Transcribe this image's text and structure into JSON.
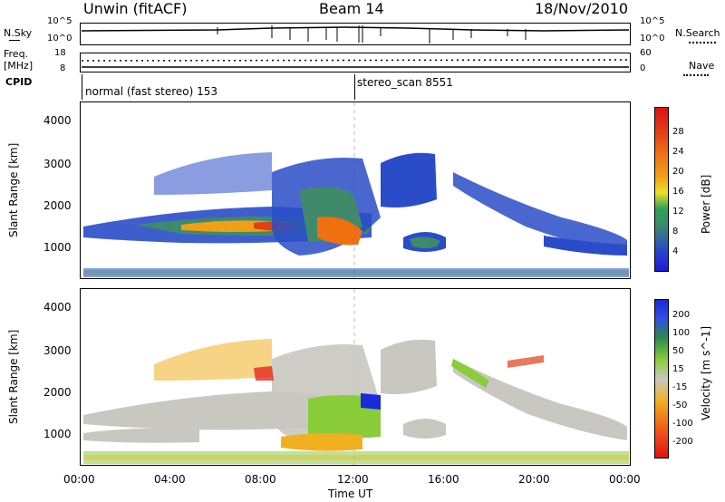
{
  "header": {
    "station": "Unwin (fitACF)",
    "beam": "Beam 14",
    "date": "18/Nov/2010"
  },
  "top_panels": {
    "nsky_label": "N.Sky",
    "nsky_ticks": [
      "10^5",
      "10^0"
    ],
    "nsearch_label": "N.Search",
    "nsearch_ticks": [
      "10^5",
      "10^0"
    ],
    "freq_label_1": "Freq.",
    "freq_label_2": "[MHz]",
    "freq_ticks": [
      "18",
      "8"
    ],
    "nave_label": "Nave",
    "nave_ticks": [
      "60",
      "0"
    ],
    "cpid_label": "CPID",
    "cpid_segments": [
      {
        "name": "normal (fast stereo)",
        "id": "153"
      },
      {
        "name": "stereo_scan",
        "id": "8551"
      }
    ]
  },
  "colors": {
    "power_scale": [
      "#1a1ad8",
      "#2a4cc8",
      "#3f8a6a",
      "#2fa05a",
      "#f0e020",
      "#f0a018",
      "#f07010",
      "#e04018",
      "#e01010"
    ],
    "velocity_scale": [
      "#1a2ad8",
      "#3050e0",
      "#2a8a4a",
      "#8acc3a",
      "#c8c8c0",
      "#f0b020",
      "#f07818",
      "#f04018",
      "#e01010"
    ]
  },
  "chart_data": [
    {
      "type": "heatmap",
      "title": "",
      "ylabel": "Slant Range [km]",
      "xlabel": "Time UT",
      "ylim": [
        250,
        4500
      ],
      "yticks": [
        "1000",
        "2000",
        "3000",
        "4000"
      ],
      "xticks": [
        "00:00",
        "04:00",
        "08:00",
        "12:00",
        "16:00",
        "20:00",
        "00:00"
      ],
      "colorbar_label": "Power [dB]",
      "colorbar_ticks": [
        "28",
        "24",
        "20",
        "16",
        "12",
        "8",
        "4"
      ]
    },
    {
      "type": "heatmap",
      "title": "",
      "ylabel": "Slant Range [km]",
      "xlabel": "Time UT",
      "ylim": [
        250,
        4500
      ],
      "yticks": [
        "1000",
        "2000",
        "3000",
        "4000"
      ],
      "xticks": [
        "00:00",
        "04:00",
        "08:00",
        "12:00",
        "16:00",
        "20:00",
        "00:00"
      ],
      "colorbar_label": "Velocity [m s^-1]",
      "colorbar_ticks": [
        "200",
        "100",
        "50",
        "15",
        "-15",
        "-50",
        "-100",
        "-200"
      ]
    }
  ]
}
